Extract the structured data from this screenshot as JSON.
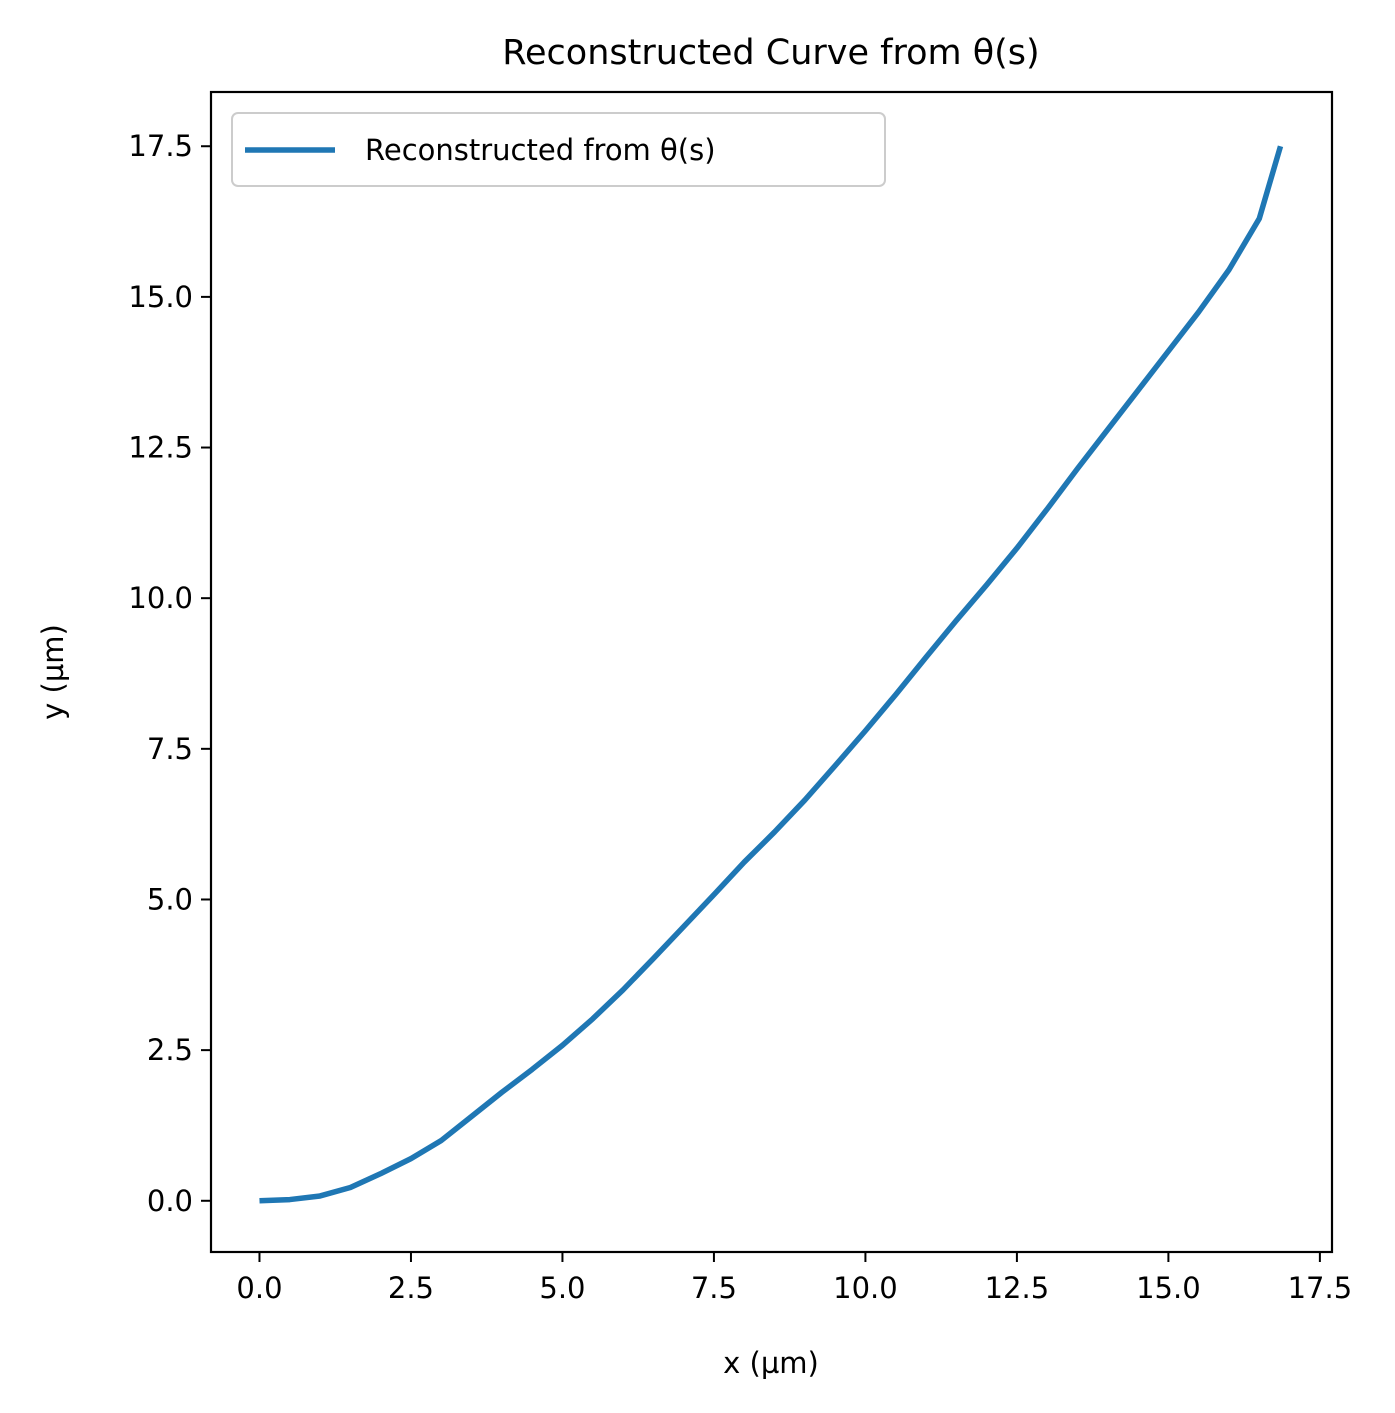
{
  "chart_data": {
    "type": "line",
    "title": "Reconstructed Curve from θ(s)",
    "xlabel": "x (µm)",
    "ylabel": "y (µm)",
    "xlim": [
      -0.8,
      17.7
    ],
    "ylim": [
      -0.85,
      18.4
    ],
    "xticks": [
      0.0,
      2.5,
      5.0,
      7.5,
      10.0,
      12.5,
      15.0,
      17.5
    ],
    "xtick_labels": [
      "0.0",
      "2.5",
      "5.0",
      "7.5",
      "10.0",
      "12.5",
      "15.0",
      "17.5"
    ],
    "yticks": [
      0.0,
      2.5,
      5.0,
      7.5,
      10.0,
      12.5,
      15.0,
      17.5
    ],
    "ytick_labels": [
      "0.0",
      "2.5",
      "5.0",
      "7.5",
      "10.0",
      "12.5",
      "15.0",
      "17.5"
    ],
    "grid": false,
    "legend_position": "upper-left",
    "series": [
      {
        "name": "Reconstructed from θ(s)",
        "color": "#1f77b4",
        "x": [
          0.0,
          0.5,
          1.0,
          1.5,
          2.0,
          2.5,
          3.0,
          3.5,
          4.0,
          4.5,
          5.0,
          5.5,
          6.0,
          6.5,
          7.0,
          7.5,
          8.0,
          8.5,
          9.0,
          9.5,
          10.0,
          10.5,
          11.0,
          11.5,
          12.0,
          12.5,
          13.0,
          13.5,
          14.0,
          14.5,
          15.0,
          15.5,
          16.0,
          16.5,
          16.85
        ],
        "y": [
          0.0,
          0.02,
          0.08,
          0.22,
          0.45,
          0.7,
          1.0,
          1.4,
          1.8,
          2.18,
          2.58,
          3.02,
          3.5,
          4.02,
          4.55,
          5.08,
          5.62,
          6.12,
          6.65,
          7.22,
          7.8,
          8.4,
          9.02,
          9.63,
          10.22,
          10.83,
          11.48,
          12.15,
          12.8,
          13.45,
          14.1,
          14.75,
          15.45,
          16.3,
          17.5
        ]
      }
    ]
  }
}
